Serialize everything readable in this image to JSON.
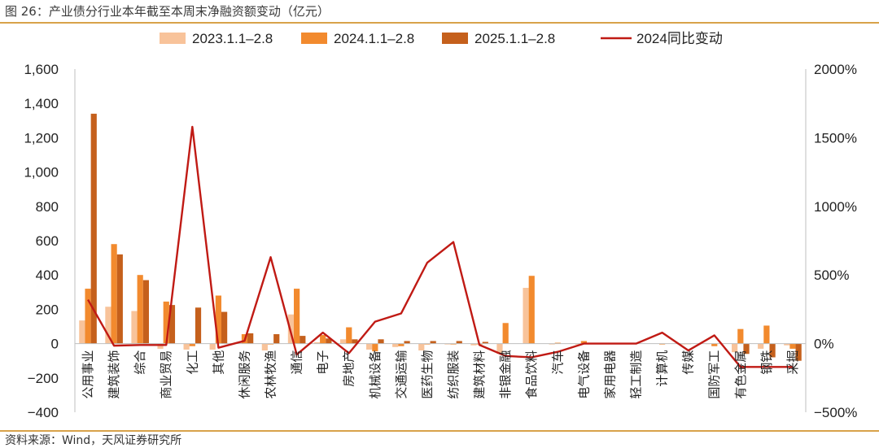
{
  "header": {
    "title": "图 26：产业债分行业本年截至本周末净融资额变动（亿元）"
  },
  "footer": {
    "source": "资料来源：Wind，天风证券研究所"
  },
  "chart_data": {
    "type": "bar",
    "categories": [
      "公用事业",
      "建筑装饰",
      "综合",
      "商业贸易",
      "化工",
      "其他",
      "休闲服务",
      "农林牧渔",
      "通信",
      "电子",
      "房地产",
      "机械设备",
      "交通运输",
      "医药生物",
      "纺织服装",
      "建筑材料",
      "非银金融",
      "食品饮料",
      "汽车",
      "电气设备",
      "家用电器",
      "轻工制造",
      "计算机",
      "传媒",
      "国防军工",
      "有色金属",
      "钢铁",
      "采掘"
    ],
    "series": [
      {
        "name": "2023.1.1–2.8",
        "color": "#f8c39a",
        "axis": "left",
        "values": [
          135,
          215,
          190,
          -30,
          -35,
          -35,
          8,
          -40,
          170,
          8,
          25,
          -35,
          -20,
          -40,
          -5,
          -10,
          -60,
          325,
          -5,
          -5,
          0,
          0,
          0,
          -5,
          -3,
          -50,
          -30,
          -10
        ]
      },
      {
        "name": "2024.1.1–2.8",
        "color": "#f28a2e",
        "axis": "left",
        "values": [
          320,
          580,
          400,
          245,
          -15,
          280,
          55,
          -5,
          320,
          50,
          95,
          -45,
          -15,
          -5,
          -5,
          -5,
          120,
          395,
          5,
          15,
          0,
          0,
          -5,
          -3,
          -15,
          85,
          105,
          -30
        ]
      },
      {
        "name": "2025.1.1–2.8",
        "color": "#c5601c",
        "axis": "left",
        "values": [
          1340,
          520,
          370,
          225,
          210,
          185,
          60,
          55,
          45,
          30,
          25,
          25,
          15,
          15,
          15,
          10,
          0,
          0,
          0,
          0,
          0,
          0,
          0,
          0,
          0,
          -60,
          -80,
          -100
        ]
      },
      {
        "name": "2024同比变动",
        "color": "#c01a14",
        "type": "line",
        "axis": "right",
        "values": [
          320,
          -15,
          -10,
          -10,
          1580,
          -30,
          20,
          630,
          -80,
          80,
          -70,
          160,
          220,
          590,
          740,
          -10,
          -90,
          -100,
          -60,
          0,
          0,
          0,
          80,
          -50,
          60,
          -170,
          -170,
          -170
        ]
      }
    ],
    "ylim": [
      -400,
      1600
    ],
    "yticks": [
      "−400",
      "−200",
      "0",
      "200",
      "400",
      "600",
      "800",
      "1,000",
      "1,200",
      "1,400",
      "1,600"
    ],
    "y2lim": [
      -500,
      2000
    ],
    "y2ticks": [
      "−500%",
      "0%",
      "500%",
      "1000%",
      "1500%",
      "2000%"
    ],
    "legend": "top"
  }
}
